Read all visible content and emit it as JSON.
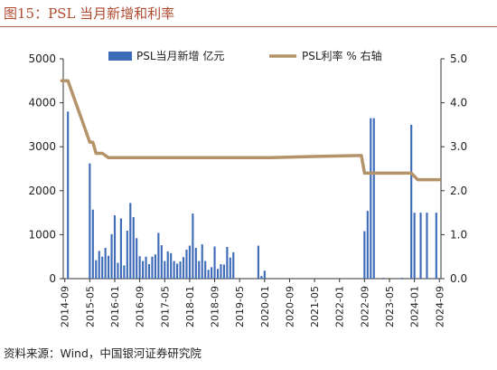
{
  "header": {
    "title": "图15：PSL 当月新增和利率"
  },
  "footer": {
    "source": "资料来源：Wind，中国银河证券研究院"
  },
  "colors": {
    "bar": "#3f6cb8",
    "line": "#b5936a",
    "axis": "#333333",
    "title": "#b04a2f"
  },
  "chart_data": {
    "type": "bar+line",
    "left_axis": {
      "ylim": [
        0,
        5000
      ],
      "ticks": [
        "0",
        "1000",
        "2000",
        "3000",
        "4000",
        "5000"
      ],
      "unit": "亿元"
    },
    "right_axis": {
      "ylim": [
        0,
        5
      ],
      "ticks": [
        "0.0",
        "1.0",
        "2.0",
        "3.0",
        "4.0",
        "5.0"
      ],
      "unit": "%"
    },
    "x_ticks": [
      "2014-09",
      "2015-05",
      "2016-01",
      "2016-09",
      "2017-05",
      "2018-01",
      "2018-09",
      "2019-05",
      "2020-01",
      "2020-09",
      "2021-05",
      "2022-01",
      "2022-09",
      "2023-05",
      "2024-01",
      "2024-09"
    ],
    "legend": [
      "PSL当月新增 亿元",
      "PSL利率 % 右轴"
    ],
    "series": [
      {
        "name": "PSL当月新增 亿元",
        "type": "bar",
        "points": [
          [
            "2014-10",
            3800
          ],
          [
            "2015-05",
            2620
          ],
          [
            "2015-06",
            1570
          ],
          [
            "2015-07",
            420
          ],
          [
            "2015-08",
            630
          ],
          [
            "2015-09",
            500
          ],
          [
            "2015-10",
            700
          ],
          [
            "2015-11",
            520
          ],
          [
            "2015-12",
            1010
          ],
          [
            "2016-01",
            1440
          ],
          [
            "2016-02",
            360
          ],
          [
            "2016-03",
            1370
          ],
          [
            "2016-04",
            300
          ],
          [
            "2016-05",
            1090
          ],
          [
            "2016-06",
            1720
          ],
          [
            "2016-07",
            1400
          ],
          [
            "2016-08",
            920
          ],
          [
            "2016-09",
            510
          ],
          [
            "2016-10",
            400
          ],
          [
            "2016-11",
            500
          ],
          [
            "2016-12",
            330
          ],
          [
            "2017-01",
            500
          ],
          [
            "2017-02",
            550
          ],
          [
            "2017-03",
            1040
          ],
          [
            "2017-04",
            760
          ],
          [
            "2017-05",
            400
          ],
          [
            "2017-06",
            620
          ],
          [
            "2017-07",
            580
          ],
          [
            "2017-08",
            400
          ],
          [
            "2017-09",
            340
          ],
          [
            "2017-10",
            390
          ],
          [
            "2017-11",
            490
          ],
          [
            "2017-12",
            660
          ],
          [
            "2018-01",
            750
          ],
          [
            "2018-02",
            1480
          ],
          [
            "2018-03",
            700
          ],
          [
            "2018-04",
            400
          ],
          [
            "2018-05",
            780
          ],
          [
            "2018-06",
            400
          ],
          [
            "2018-07",
            200
          ],
          [
            "2018-08",
            260
          ],
          [
            "2018-09",
            730
          ],
          [
            "2018-10",
            220
          ],
          [
            "2018-11",
            330
          ],
          [
            "2018-12",
            320
          ],
          [
            "2019-01",
            720
          ],
          [
            "2019-02",
            480
          ],
          [
            "2019-03",
            600
          ],
          [
            "2019-11",
            750
          ],
          [
            "2019-12",
            60
          ],
          [
            "2020-01",
            180
          ],
          [
            "2022-09",
            1080
          ],
          [
            "2022-10",
            1540
          ],
          [
            "2022-11",
            3650
          ],
          [
            "2022-12",
            3650
          ],
          [
            "2023-03",
            20
          ],
          [
            "2023-09",
            20
          ],
          [
            "2023-12",
            3500
          ],
          [
            "2024-01",
            1500
          ],
          [
            "2024-03",
            1500
          ],
          [
            "2024-05",
            1500
          ],
          [
            "2024-08",
            1500
          ]
        ]
      },
      {
        "name": "PSL利率 % 右轴",
        "type": "line",
        "points": [
          [
            "2014-08",
            4.5
          ],
          [
            "2014-10",
            4.5
          ],
          [
            "2015-05",
            3.1
          ],
          [
            "2015-06",
            3.1
          ],
          [
            "2015-07",
            2.85
          ],
          [
            "2015-09",
            2.85
          ],
          [
            "2015-11",
            2.75
          ],
          [
            "2019-12",
            2.75
          ],
          [
            "2020-03",
            2.75
          ],
          [
            "2021-06",
            2.78
          ],
          [
            "2022-08",
            2.8
          ],
          [
            "2022-09",
            2.4
          ],
          [
            "2023-12",
            2.4
          ],
          [
            "2024-02",
            2.25
          ],
          [
            "2024-09",
            2.25
          ]
        ]
      }
    ]
  }
}
